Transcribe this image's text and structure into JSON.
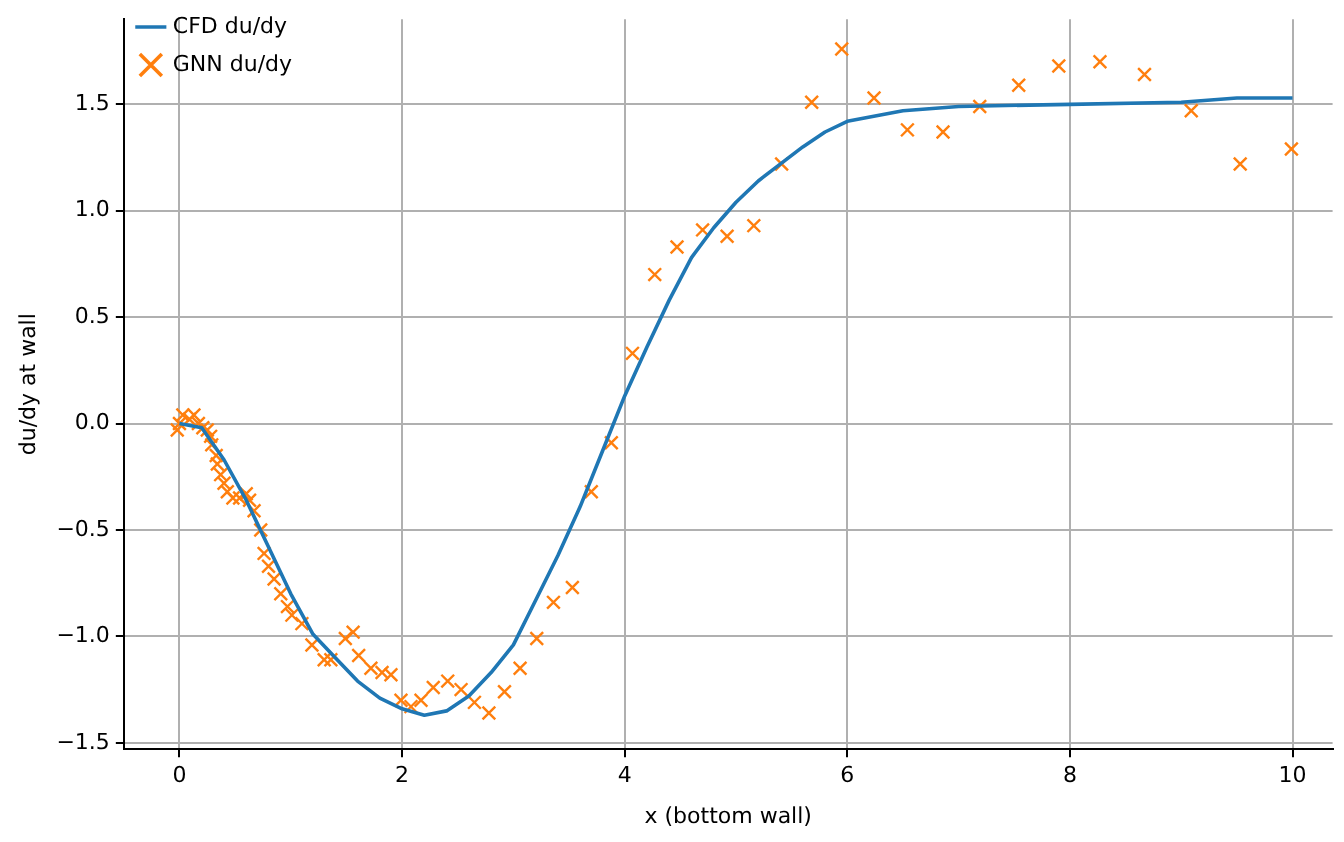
{
  "chart_data": {
    "type": "line",
    "xlabel": "x (bottom wall)",
    "ylabel": "du/dy at wall",
    "xlim": [
      -0.5,
      10.36
    ],
    "ylim": [
      -1.53,
      1.9
    ],
    "xticks": [
      0,
      2,
      4,
      6,
      8,
      10
    ],
    "yticks": [
      {
        "value": -1.5,
        "label": "−1.5"
      },
      {
        "value": -1,
        "label": "−1.0"
      },
      {
        "value": -0.5,
        "label": "−0.5"
      },
      {
        "value": 0,
        "label": "0.0"
      },
      {
        "value": 0.5,
        "label": "0.5"
      },
      {
        "value": 1,
        "label": "1.0"
      },
      {
        "value": 1.5,
        "label": "1.5"
      }
    ],
    "grid": true,
    "legend": "top left",
    "series": [
      {
        "name": "CFD du/dy",
        "color": "#1f77b4",
        "marker": "none",
        "line_style": "solid",
        "x": [
          0,
          0.2,
          0.4,
          0.6,
          0.8,
          1.0,
          1.2,
          1.4,
          1.6,
          1.8,
          2.0,
          2.2,
          2.4,
          2.6,
          2.8,
          3.0,
          3.2,
          3.4,
          3.6,
          3.8,
          4.0,
          4.2,
          4.4,
          4.6,
          4.8,
          5.0,
          5.2,
          5.4,
          5.6,
          5.8,
          6.0,
          6.5,
          7.0,
          8.0,
          9.0,
          9.5,
          10.0
        ],
        "values": [
          0,
          -0.02,
          -0.17,
          -0.36,
          -0.58,
          -0.8,
          -0.99,
          -1.1,
          -1.21,
          -1.29,
          -1.34,
          -1.37,
          -1.35,
          -1.28,
          -1.17,
          -1.04,
          -0.83,
          -0.62,
          -0.39,
          -0.13,
          0.13,
          0.36,
          0.58,
          0.78,
          0.92,
          1.04,
          1.14,
          1.22,
          1.3,
          1.37,
          1.42,
          1.47,
          1.49,
          1.5,
          1.51,
          1.53,
          1.53
        ]
      },
      {
        "name": "GNN du/dy",
        "type": "scatter",
        "color": "#ff7f0e",
        "marker": "cross",
        "x": [
          0,
          -0.02,
          0.03,
          0.09,
          0.13,
          0.17,
          0.21,
          0.25,
          0.28,
          0.29,
          0.33,
          0.34,
          0.37,
          0.4,
          0.43,
          0.48,
          0.54,
          0.6,
          0.63,
          0.67,
          0.73,
          0.76,
          0.8,
          0.85,
          0.91,
          0.97,
          1.01,
          1.1,
          1.19,
          1.3,
          1.36,
          1.49,
          1.56,
          1.61,
          1.72,
          1.82,
          1.9,
          1.99,
          2.08,
          2.17,
          2.28,
          2.41,
          2.53,
          2.65,
          2.78,
          2.92,
          3.06,
          3.21,
          3.36,
          3.53,
          3.7,
          3.88,
          4.07,
          4.27,
          4.47,
          4.7,
          4.92,
          5.16,
          5.41,
          5.68,
          5.95,
          6.24,
          6.54,
          6.86,
          7.19,
          7.54,
          7.9,
          8.27,
          8.67,
          9.09,
          9.53,
          9.99
        ],
        "values": [
          0,
          -0.03,
          0.04,
          0.02,
          0.04,
          0,
          -0.02,
          -0.03,
          -0.06,
          -0.1,
          -0.15,
          -0.19,
          -0.24,
          -0.28,
          -0.32,
          -0.35,
          -0.35,
          -0.33,
          -0.36,
          -0.41,
          -0.5,
          -0.61,
          -0.67,
          -0.73,
          -0.8,
          -0.86,
          -0.9,
          -0.94,
          -1.04,
          -1.11,
          -1.11,
          -1.01,
          -0.98,
          -1.09,
          -1.15,
          -1.17,
          -1.18,
          -1.3,
          -1.33,
          -1.3,
          -1.24,
          -1.21,
          -1.25,
          -1.31,
          -1.36,
          -1.26,
          -1.15,
          -1.01,
          -0.84,
          -0.77,
          -0.32,
          -0.09,
          0.33,
          0.7,
          0.83,
          0.91,
          0.88,
          0.93,
          1.22,
          1.51,
          1.76,
          1.53,
          1.38,
          1.37,
          1.49,
          1.59,
          1.68,
          1.7,
          1.64,
          1.47,
          1.22,
          1.29
        ]
      }
    ]
  }
}
